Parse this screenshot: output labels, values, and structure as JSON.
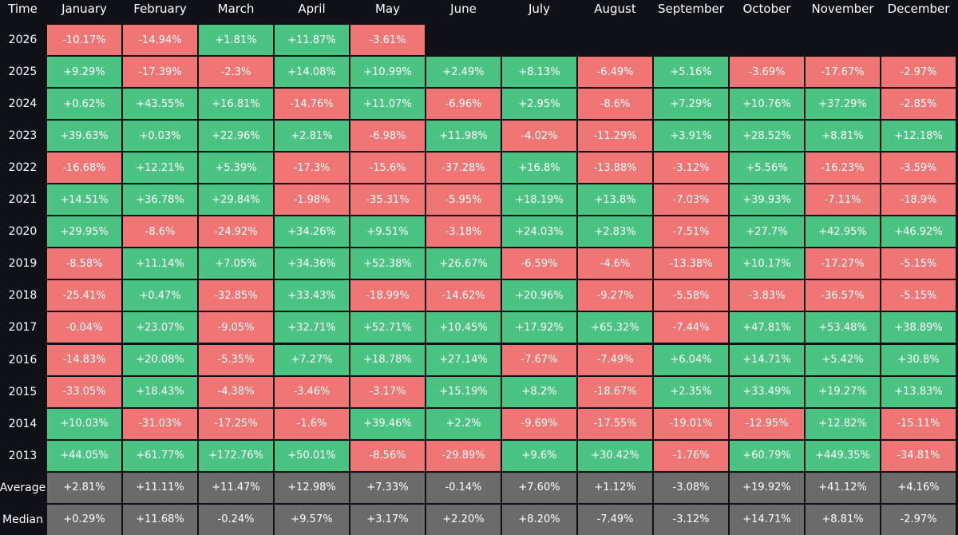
{
  "chart_data": {
    "type": "heatmap",
    "corner_label": "Time",
    "columns": [
      "January",
      "February",
      "March",
      "April",
      "May",
      "June",
      "July",
      "August",
      "September",
      "October",
      "November",
      "December"
    ],
    "rows": [
      {
        "label": "2026",
        "values": [
          "-10.17%",
          "-14.94%",
          "+1.81%",
          "+11.87%",
          "-3.61%",
          "",
          "",
          "",
          "",
          "",
          "",
          ""
        ]
      },
      {
        "label": "2025",
        "values": [
          "+9.29%",
          "-17.39%",
          "-2.3%",
          "+14.08%",
          "+10.99%",
          "+2.49%",
          "+8.13%",
          "-6.49%",
          "+5.16%",
          "-3.69%",
          "-17.67%",
          "-2.97%"
        ]
      },
      {
        "label": "2024",
        "values": [
          "+0.62%",
          "+43.55%",
          "+16.81%",
          "-14.76%",
          "+11.07%",
          "-6.96%",
          "+2.95%",
          "-8.6%",
          "+7.29%",
          "+10.76%",
          "+37.29%",
          "-2.85%"
        ]
      },
      {
        "label": "2023",
        "values": [
          "+39.63%",
          "+0.03%",
          "+22.96%",
          "+2.81%",
          "-6.98%",
          "+11.98%",
          "-4.02%",
          "-11.29%",
          "+3.91%",
          "+28.52%",
          "+8.81%",
          "+12.18%"
        ]
      },
      {
        "label": "2022",
        "values": [
          "-16.68%",
          "+12.21%",
          "+5.39%",
          "-17.3%",
          "-15.6%",
          "-37.28%",
          "+16.8%",
          "-13.88%",
          "-3.12%",
          "+5.56%",
          "-16.23%",
          "-3.59%"
        ]
      },
      {
        "label": "2021",
        "values": [
          "+14.51%",
          "+36.78%",
          "+29.84%",
          "-1.98%",
          "-35.31%",
          "-5.95%",
          "+18.19%",
          "+13.8%",
          "-7.03%",
          "+39.93%",
          "-7.11%",
          "-18.9%"
        ]
      },
      {
        "label": "2020",
        "values": [
          "+29.95%",
          "-8.6%",
          "-24.92%",
          "+34.26%",
          "+9.51%",
          "-3.18%",
          "+24.03%",
          "+2.83%",
          "-7.51%",
          "+27.7%",
          "+42.95%",
          "+46.92%"
        ]
      },
      {
        "label": "2019",
        "values": [
          "-8.58%",
          "+11.14%",
          "+7.05%",
          "+34.36%",
          "+52.38%",
          "+26.67%",
          "-6.59%",
          "-4.6%",
          "-13.38%",
          "+10.17%",
          "-17.27%",
          "-5.15%"
        ]
      },
      {
        "label": "2018",
        "values": [
          "-25.41%",
          "+0.47%",
          "-32.85%",
          "+33.43%",
          "-18.99%",
          "-14.62%",
          "+20.96%",
          "-9.27%",
          "-5.58%",
          "-3.83%",
          "-36.57%",
          "-5.15%"
        ]
      },
      {
        "label": "2017",
        "values": [
          "-0.04%",
          "+23.07%",
          "-9.05%",
          "+32.71%",
          "+52.71%",
          "+10.45%",
          "+17.92%",
          "+65.32%",
          "-7.44%",
          "+47.81%",
          "+53.48%",
          "+38.89%"
        ]
      },
      {
        "label": "2016",
        "values": [
          "-14.83%",
          "+20.08%",
          "-5.35%",
          "+7.27%",
          "+18.78%",
          "+27.14%",
          "-7.67%",
          "-7.49%",
          "+6.04%",
          "+14.71%",
          "+5.42%",
          "+30.8%"
        ]
      },
      {
        "label": "2015",
        "values": [
          "-33.05%",
          "+18.43%",
          "-4.38%",
          "-3.46%",
          "-3.17%",
          "+15.19%",
          "+8.2%",
          "-18.67%",
          "+2.35%",
          "+33.49%",
          "+19.27%",
          "+13.83%"
        ]
      },
      {
        "label": "2014",
        "values": [
          "+10.03%",
          "-31.03%",
          "-17.25%",
          "-1.6%",
          "+39.46%",
          "+2.2%",
          "-9.69%",
          "-17.55%",
          "-19.01%",
          "-12.95%",
          "+12.82%",
          "-15.11%"
        ]
      },
      {
        "label": "2013",
        "values": [
          "+44.05%",
          "+61.77%",
          "+172.76%",
          "+50.01%",
          "-8.56%",
          "-29.89%",
          "+9.6%",
          "+30.42%",
          "-1.76%",
          "+60.79%",
          "+449.35%",
          "-34.81%"
        ]
      }
    ],
    "summary_rows": [
      {
        "label": "Average",
        "values": [
          "+2.81%",
          "+11.11%",
          "+11.47%",
          "+12.98%",
          "+7.33%",
          "-0.14%",
          "+7.60%",
          "+1.12%",
          "-3.08%",
          "+19.92%",
          "+41.12%",
          "+4.16%"
        ]
      },
      {
        "label": "Median",
        "values": [
          "+0.29%",
          "+11.68%",
          "-0.24%",
          "+9.57%",
          "+3.17%",
          "+2.20%",
          "+8.20%",
          "-7.49%",
          "-3.12%",
          "+14.71%",
          "+8.81%",
          "-2.97%"
        ]
      }
    ],
    "colors": {
      "positive": "#4bc483",
      "negative": "#f07575",
      "summary": "#6b6b6b",
      "background": "#0f1116",
      "text": "#ffffff"
    }
  }
}
